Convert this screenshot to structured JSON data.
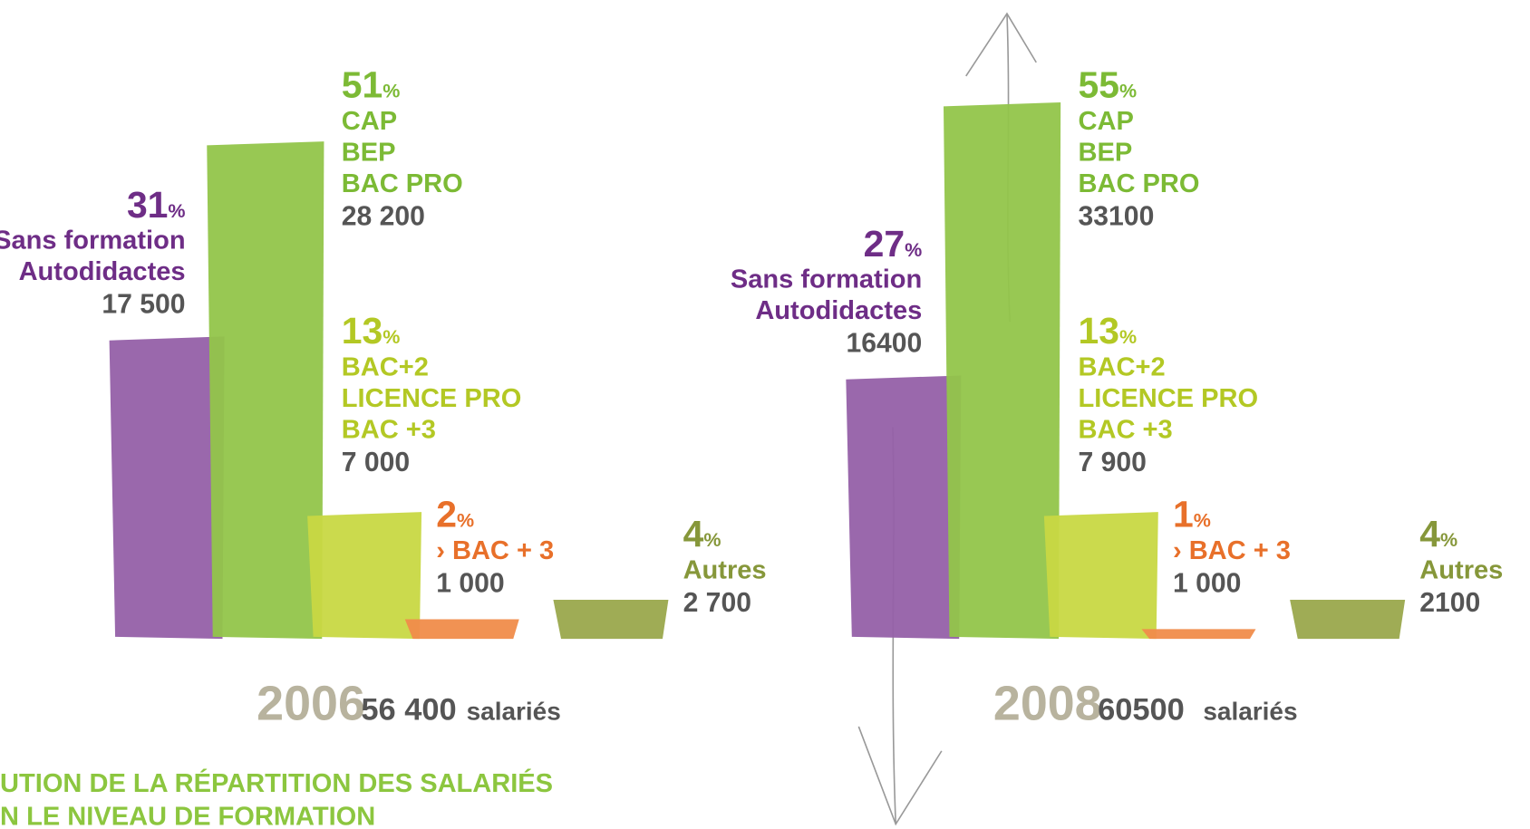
{
  "chart_data": [
    {
      "type": "bar",
      "year": "2006",
      "total": 56400,
      "total_label": "56 400",
      "unit": "salariés",
      "percent_sign": "%",
      "categories": [
        [
          "Sans formation",
          "Autodidactes"
        ],
        [
          "CAP",
          "BEP",
          "BAC PRO"
        ],
        [
          "BAC+2",
          "LICENCE PRO",
          "BAC +3"
        ],
        [
          "› BAC + 3"
        ],
        [
          "Autres"
        ]
      ],
      "values": [
        31,
        51,
        13,
        2,
        4
      ],
      "counts": [
        17500,
        28200,
        7000,
        1000,
        2700
      ],
      "count_labels": [
        "17 500",
        "28 200",
        "7 000",
        "1 000",
        "2 700"
      ],
      "colors": [
        "#9560a8",
        "#92c54a",
        "#c8d843",
        "#f08c4a",
        "#9aa84c"
      ],
      "text_colors": [
        "#6e2d86",
        "#7cba35",
        "#b3c824",
        "#e8702a",
        "#86973a"
      ],
      "ylim": [
        0,
        60
      ]
    },
    {
      "type": "bar",
      "year": "2008",
      "total": 60500,
      "total_label": "60500",
      "unit": "salariés",
      "percent_sign": "%",
      "categories": [
        [
          "Sans formation",
          "Autodidactes"
        ],
        [
          "CAP",
          "BEP",
          "BAC PRO"
        ],
        [
          "BAC+2",
          "LICENCE PRO",
          "BAC +3"
        ],
        [
          "› BAC + 3"
        ],
        [
          "Autres"
        ]
      ],
      "values": [
        27,
        55,
        13,
        1,
        4
      ],
      "counts": [
        16400,
        33100,
        7900,
        1000,
        2100
      ],
      "count_labels": [
        "16400",
        "33100",
        "7 900",
        "1 000",
        "2100"
      ],
      "colors": [
        "#9560a8",
        "#92c54a",
        "#c8d843",
        "#f08c4a",
        "#9aa84c"
      ],
      "text_colors": [
        "#6e2d86",
        "#7cba35",
        "#b3c824",
        "#e8702a",
        "#86973a"
      ],
      "ylim": [
        0,
        60
      ]
    }
  ],
  "caption": [
    "UTION DE LA RÉPARTITION DES SALARIÉS",
    "N LE NIVEAU DE FORMATION"
  ]
}
